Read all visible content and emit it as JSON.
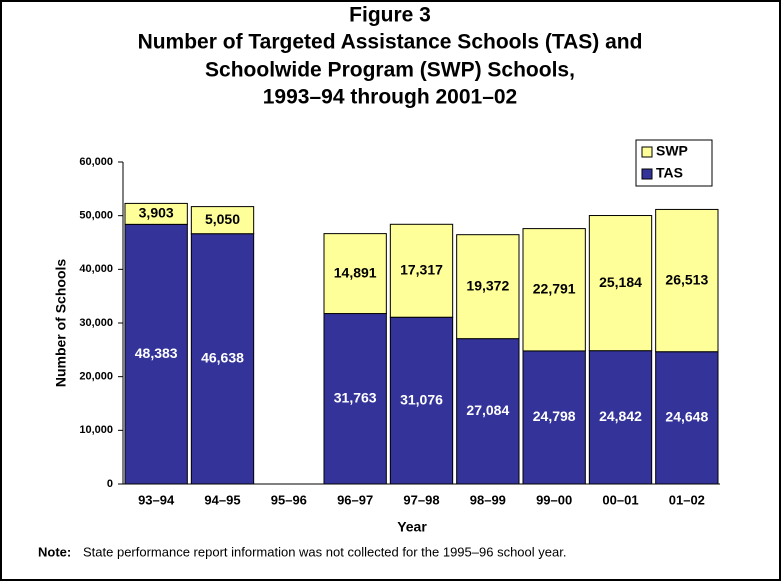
{
  "chart_data": {
    "type": "bar",
    "stacked": true,
    "title": [
      "Figure 3",
      "Number of Targeted Assistance Schools (TAS) and",
      "Schoolwide Program (SWP) Schools,",
      "1993–94 through 2001–02"
    ],
    "x_label": "Year",
    "y_label": "Number of Schools",
    "categories": [
      "93–94",
      "94–95",
      "95–96",
      "96–97",
      "97–98",
      "98–99",
      "99–00",
      "00–01",
      "01–02"
    ],
    "series": [
      {
        "name": "TAS",
        "color": "#333399",
        "values": [
          48383,
          46638,
          null,
          31763,
          31076,
          27084,
          24798,
          24842,
          24648
        ],
        "value_labels": [
          "48,383",
          "46,638",
          null,
          "31,763",
          "31,076",
          "27,084",
          "24,798",
          "24,842",
          "24,648"
        ]
      },
      {
        "name": "SWP",
        "color": "#ffff99",
        "values": [
          3903,
          5050,
          null,
          14891,
          17317,
          19372,
          22791,
          25184,
          26513
        ],
        "value_labels": [
          "3,903",
          "5,050",
          null,
          "14,891",
          "17,317",
          "19,372",
          "22,791",
          "25,184",
          "26,513"
        ]
      }
    ],
    "ylim": [
      0,
      60000
    ],
    "yticks": [
      0,
      {
        "value": 10000,
        "label": "10,000"
      },
      {
        "value": 20000,
        "label": "20,000"
      },
      {
        "value": 30000,
        "label": "30,000"
      },
      {
        "value": 40000,
        "label": "40,000"
      },
      {
        "value": 50000,
        "label": "50,000"
      },
      {
        "value": 60000,
        "label": "60,000"
      }
    ],
    "legend": "upper right",
    "note": {
      "label": "Note:",
      "text": "State performance report information was not collected for the 1995–96 school year."
    }
  }
}
